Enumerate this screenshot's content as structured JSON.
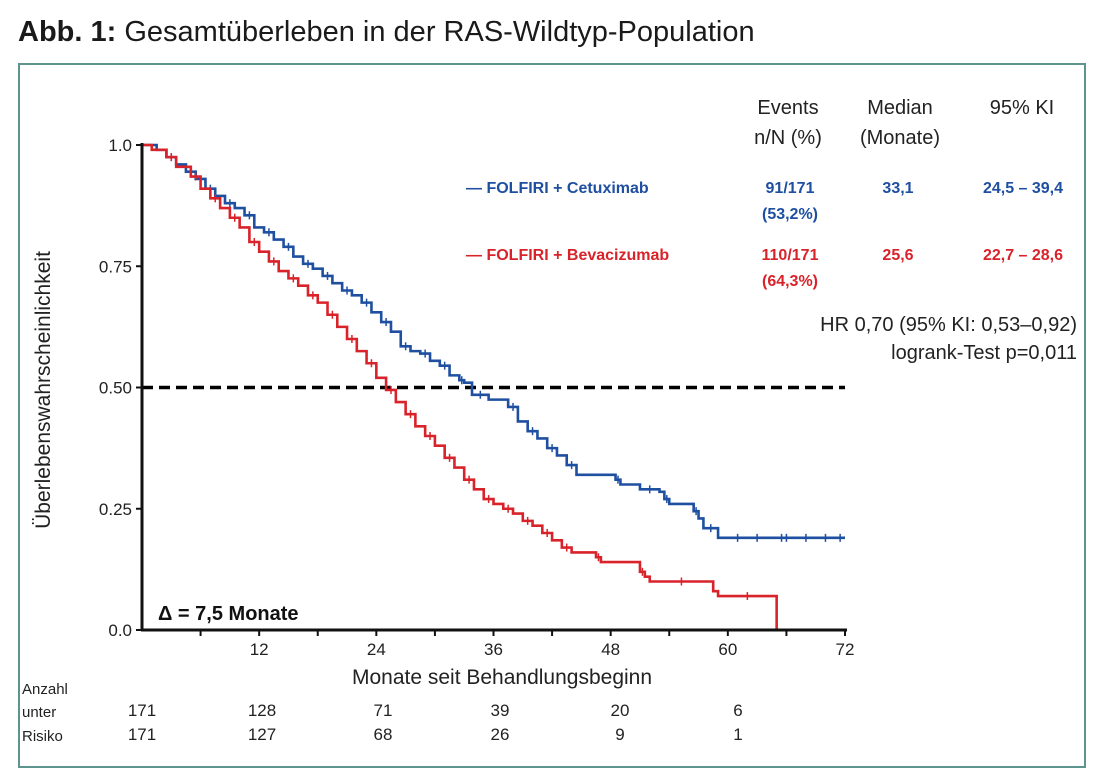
{
  "figure": {
    "label": "Abb. 1:",
    "title": "Gesamtüberleben in der RAS-Wildtyp-Population"
  },
  "colors": {
    "blue": "#1f4fa0",
    "red": "#d9232a",
    "frame": "#5e948e",
    "ref_line": "#000000"
  },
  "chart_data": {
    "type": "line",
    "subtype": "kaplan-meier",
    "title": "Gesamtüberleben in der RAS-Wildtyp-Population",
    "xlabel": "Monate seit Behandlungsbeginn",
    "ylabel": "Überlebenswahrscheinlichkeit",
    "xlim": [
      0,
      72
    ],
    "ylim": [
      0,
      1
    ],
    "xticks": [
      12,
      24,
      36,
      48,
      60,
      72
    ],
    "xtick_labels": [
      "12",
      "24",
      "36",
      "48",
      "60",
      "72"
    ],
    "yticks": [
      0,
      0.25,
      0.5,
      0.75,
      1.0
    ],
    "ytick_labels": [
      "0.0",
      "0.25",
      "0.50",
      "0.75",
      "1.0"
    ],
    "grid": false,
    "reference_line": {
      "y": 0.5,
      "style": "dashed",
      "x_range": [
        0,
        72
      ]
    },
    "annotation": "Δ = 7,5 Monate",
    "table_header": {
      "events": [
        "Events",
        "n/N (%)"
      ],
      "median": [
        "Median",
        "(Monate)"
      ],
      "ci": [
        "95% KI"
      ]
    },
    "series": [
      {
        "name": "— FOLFIRI + Cetuximab",
        "color": "#1f4fa0",
        "events": "91/171",
        "events_pct": "(53,2%)",
        "median": "33,1",
        "ci": "24,5 – 39,4",
        "x": [
          0,
          1.5,
          2.5,
          3.5,
          4.5,
          5.5,
          6.5,
          7.5,
          8.5,
          9.5,
          10.5,
          11.5,
          12.5,
          13.5,
          14.5,
          15.5,
          16.5,
          17.5,
          18.5,
          19.5,
          20.5,
          21.5,
          22.5,
          23.5,
          24.5,
          25.5,
          26.5,
          27.5,
          28.5,
          29.5,
          30.5,
          31.5,
          32.5,
          33.0,
          33.8,
          35.5,
          37.5,
          38.5,
          39.5,
          40.5,
          41.5,
          42.5,
          43.5,
          44.5,
          48.5,
          49.0,
          51.0,
          53.0,
          53.5,
          54.0,
          56.5,
          57.0,
          57.5,
          59.0,
          72.0
        ],
        "y": [
          1.0,
          0.99,
          0.975,
          0.96,
          0.945,
          0.93,
          0.91,
          0.895,
          0.88,
          0.87,
          0.855,
          0.83,
          0.82,
          0.805,
          0.79,
          0.77,
          0.755,
          0.745,
          0.73,
          0.715,
          0.7,
          0.69,
          0.675,
          0.655,
          0.635,
          0.615,
          0.585,
          0.575,
          0.57,
          0.555,
          0.545,
          0.525,
          0.515,
          0.51,
          0.485,
          0.475,
          0.46,
          0.43,
          0.41,
          0.395,
          0.375,
          0.36,
          0.34,
          0.32,
          0.31,
          0.3,
          0.29,
          0.285,
          0.27,
          0.26,
          0.245,
          0.23,
          0.21,
          0.19,
          0.19
        ]
      },
      {
        "name": "— FOLFIRI + Bevacizumab",
        "color": "#d9232a",
        "events": "110/171",
        "events_pct": "(64,3%)",
        "median": "25,6",
        "ci": "22,7 – 28,6",
        "x": [
          0,
          1.0,
          2.5,
          3.5,
          5.0,
          6.0,
          7.0,
          8.0,
          9.0,
          10.0,
          11.0,
          12.0,
          13.0,
          14.0,
          15.0,
          16.0,
          17.0,
          18.0,
          19.0,
          20.0,
          21.0,
          22.0,
          23.0,
          24.0,
          25.0,
          26.0,
          27.0,
          28.0,
          29.0,
          30.0,
          31.0,
          32.0,
          33.0,
          34.0,
          35.0,
          36.0,
          37.0,
          38.0,
          39.0,
          40.0,
          41.0,
          42.0,
          43.0,
          44.0,
          46.5,
          47.0,
          51.0,
          51.5,
          52.0,
          58.5,
          59.0,
          65.0
        ],
        "y": [
          1.0,
          0.99,
          0.975,
          0.955,
          0.935,
          0.91,
          0.89,
          0.87,
          0.85,
          0.83,
          0.8,
          0.78,
          0.76,
          0.74,
          0.725,
          0.71,
          0.69,
          0.675,
          0.65,
          0.625,
          0.6,
          0.575,
          0.55,
          0.52,
          0.495,
          0.47,
          0.445,
          0.42,
          0.4,
          0.38,
          0.355,
          0.335,
          0.31,
          0.29,
          0.27,
          0.26,
          0.25,
          0.24,
          0.225,
          0.215,
          0.2,
          0.185,
          0.17,
          0.16,
          0.15,
          0.14,
          0.12,
          0.11,
          0.1,
          0.08,
          0.07,
          0.0
        ]
      }
    ],
    "statistics": {
      "hr": "HR 0,70 (95% KI: 0,53–0,92)",
      "logrank": "logrank-Test p=0,011"
    },
    "at_risk": {
      "label": [
        "Anzahl",
        "unter",
        "Risiko"
      ],
      "x": [
        0,
        12,
        24,
        36,
        48,
        60
      ],
      "rows": [
        {
          "series": "FOLFIRI + Cetuximab",
          "values": [
            "171",
            "128",
            "71",
            "39",
            "20",
            "6"
          ]
        },
        {
          "series": "FOLFIRI + Bevacizumab",
          "values": [
            "171",
            "127",
            "68",
            "26",
            "9",
            "1"
          ]
        }
      ]
    }
  }
}
